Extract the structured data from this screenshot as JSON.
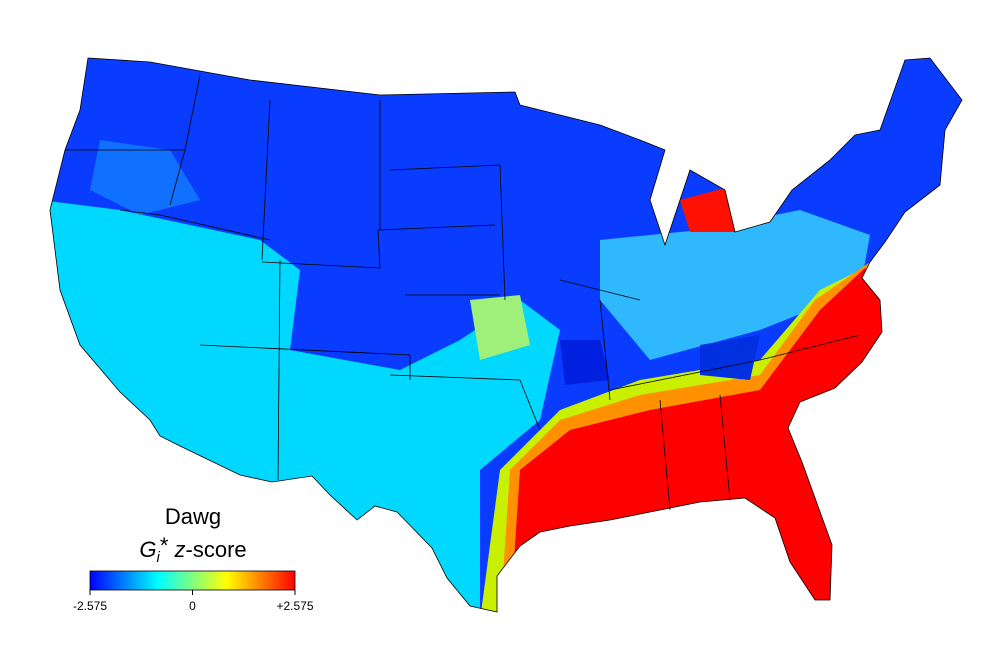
{
  "legend": {
    "title": "Dawg",
    "subtitle_parts": [
      "G",
      "i",
      "*",
      " z",
      "-score"
    ],
    "colorbar": {
      "range": [
        -2.575,
        2.575
      ],
      "ticks": [
        -2.575,
        0,
        {
          "value": 2.575,
          "label": "+2.575"
        }
      ],
      "colors": [
        "#0000ff",
        "#0080ff",
        "#00ffff",
        "#80ff80",
        "#ffff00",
        "#ff8000",
        "#ff0000"
      ]
    }
  }
}
